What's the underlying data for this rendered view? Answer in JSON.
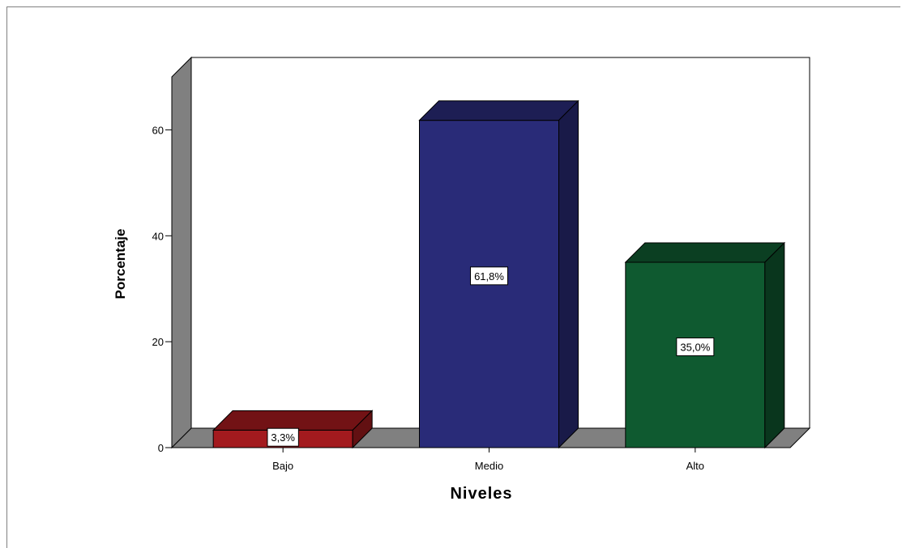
{
  "chart_data": {
    "type": "bar",
    "style": "3d",
    "categories": [
      "Bajo",
      "Medio",
      "Alto"
    ],
    "values": [
      3.3,
      61.8,
      35.0
    ],
    "data_labels": [
      "3,3%",
      "61,8%",
      "35,0%"
    ],
    "colors": [
      "#a31a1e",
      "#292b78",
      "#0f5a30"
    ],
    "xlabel": "Niveles",
    "ylabel": "Porcentaje",
    "yticks": [
      0,
      20,
      40,
      60
    ],
    "ylim": [
      0,
      70
    ],
    "grid": false,
    "legend": "none"
  }
}
